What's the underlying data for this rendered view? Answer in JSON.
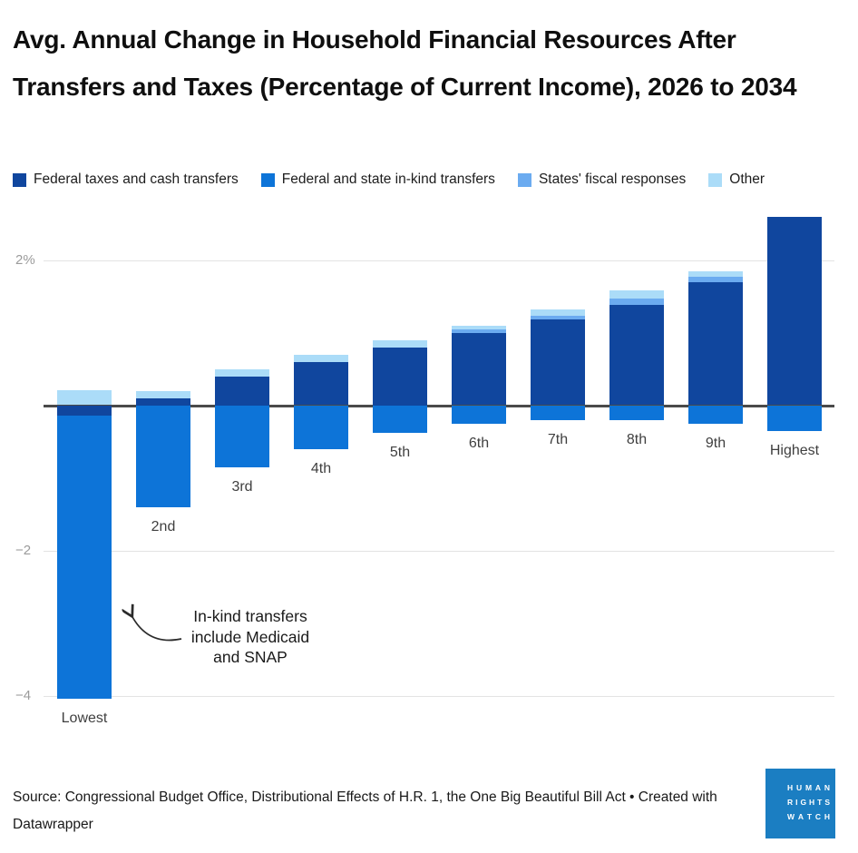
{
  "title": "Avg. Annual Change in Household Financial Resources After Transfers and Taxes (Percentage of Current Income), 2026 to 2034",
  "annotation": {
    "lines": [
      "In-kind transfers",
      "include Medicaid",
      "and SNAP"
    ]
  },
  "source": "Source: Congressional Budget Office, Distributional Effects of H.R. 1, the One Big Beautiful Bill Act • Created with Datawrapper",
  "logo": {
    "lines": [
      "HUMAN",
      "RIGHTS",
      "WATCH"
    ],
    "color": "#1b7ec2"
  },
  "colors": {
    "zero_line": "#4a4a4a",
    "gridline": "#e3e3e3",
    "tick_label": "#9b9b9b"
  },
  "chart_data": {
    "type": "bar",
    "stacked": true,
    "title": "Avg. Annual Change in Household Financial Resources After Transfers and Taxes (Percentage of Current Income), 2026 to 2034",
    "xlabel": "",
    "ylabel": "Percentage of current income",
    "categories": [
      "Lowest",
      "2nd",
      "3rd",
      "4th",
      "5th",
      "6th",
      "7th",
      "8th",
      "9th",
      "Highest"
    ],
    "series": [
      {
        "id": "fed",
        "name": "Federal taxes and cash transfers",
        "color": "#10469e",
        "values": [
          -0.14,
          0.1,
          0.4,
          0.59,
          0.8,
          0.99,
          1.18,
          1.38,
          1.69,
          2.59
        ]
      },
      {
        "id": "inkind",
        "name": "Federal and state in-kind transfers",
        "color": "#0d74d8",
        "values": [
          -3.9,
          -1.4,
          -0.86,
          -0.6,
          -0.38,
          -0.26,
          -0.2,
          -0.2,
          -0.25,
          -0.36
        ]
      },
      {
        "id": "states",
        "name": "States' fiscal responses",
        "color": "#6babf0",
        "values": [
          0,
          0,
          0,
          0,
          0,
          0.05,
          0.05,
          0.09,
          0.08,
          0
        ]
      },
      {
        "id": "other",
        "name": "Other",
        "color": "#abdcf8",
        "values": [
          0.21,
          0.1,
          0.1,
          0.11,
          0.1,
          0.05,
          0.09,
          0.11,
          0.08,
          0
        ]
      }
    ],
    "positive_stack_order": [
      "fed",
      "states",
      "other"
    ],
    "negative_stack_order": [
      "fed",
      "inkind"
    ],
    "yticks": [
      {
        "value": 2,
        "label": "2%"
      },
      {
        "value": 0,
        "label": ""
      },
      {
        "value": -2,
        "label": "−2"
      },
      {
        "value": -4,
        "label": "−4"
      }
    ],
    "ylim": [
      -4.35,
      2.75
    ],
    "grid": true,
    "legend_position": "top"
  }
}
